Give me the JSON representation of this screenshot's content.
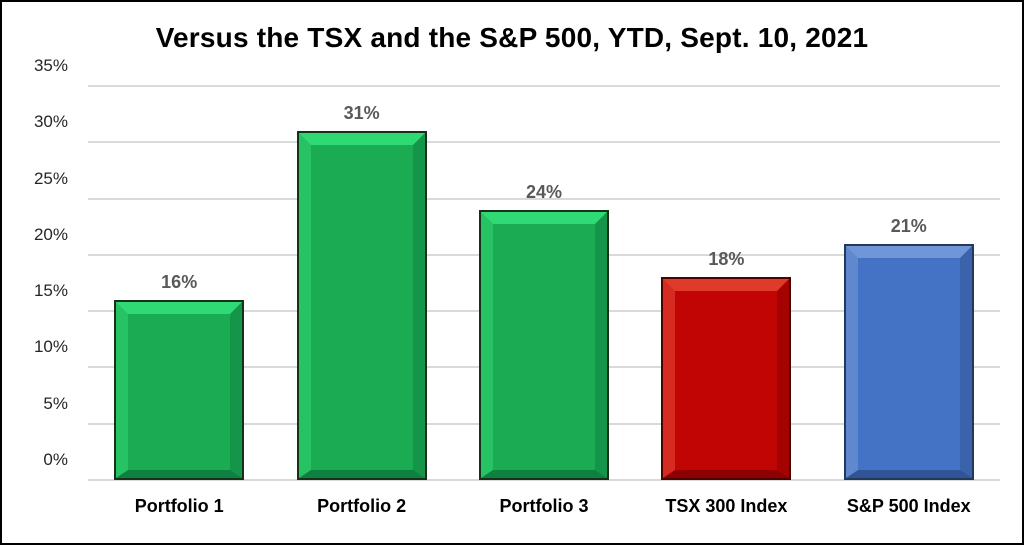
{
  "chart_data": {
    "type": "bar",
    "title": "Versus the TSX and the S&P 500, YTD, Sept. 10, 2021",
    "categories": [
      "Portfolio 1",
      "Portfolio 2",
      "Portfolio 3",
      "TSX 300 Index",
      "S&P 500 Index"
    ],
    "values": [
      16,
      31,
      24,
      18,
      21
    ],
    "value_labels": [
      "16%",
      "31%",
      "24%",
      "18%",
      "21%"
    ],
    "ylim": [
      0,
      35
    ],
    "ytick_step": 5,
    "ytick_labels": [
      "0%",
      "5%",
      "10%",
      "15%",
      "20%",
      "25%",
      "30%",
      "35%"
    ],
    "grid": true,
    "legend": "none",
    "xlabel": "",
    "ylabel": "",
    "bar_palette_keys": [
      "green",
      "green",
      "green",
      "red",
      "blue"
    ],
    "palettes": {
      "green": {
        "outline": "#16301A",
        "light": "#2FD973",
        "left": "#27C264",
        "center": "#1BAB53",
        "right": "#14954A",
        "bottom": "#0E8040"
      },
      "red": {
        "outline": "#4A0503",
        "light": "#E03A2A",
        "left": "#D52B20",
        "center": "#C00504",
        "right": "#A50302",
        "bottom": "#8E0100"
      },
      "blue": {
        "outline": "#23395C",
        "light": "#7196D8",
        "left": "#5F88CF",
        "center": "#4472C4",
        "right": "#3A63AC",
        "bottom": "#2F5597"
      }
    },
    "style_colors": {
      "gridline": "#D9D9D9",
      "title_text": "#000000",
      "axis_tick_text": "#262626",
      "value_label_text": "#595959",
      "category_text": "#000000",
      "frame_border": "#000000",
      "background": "#FFFFFF"
    }
  }
}
